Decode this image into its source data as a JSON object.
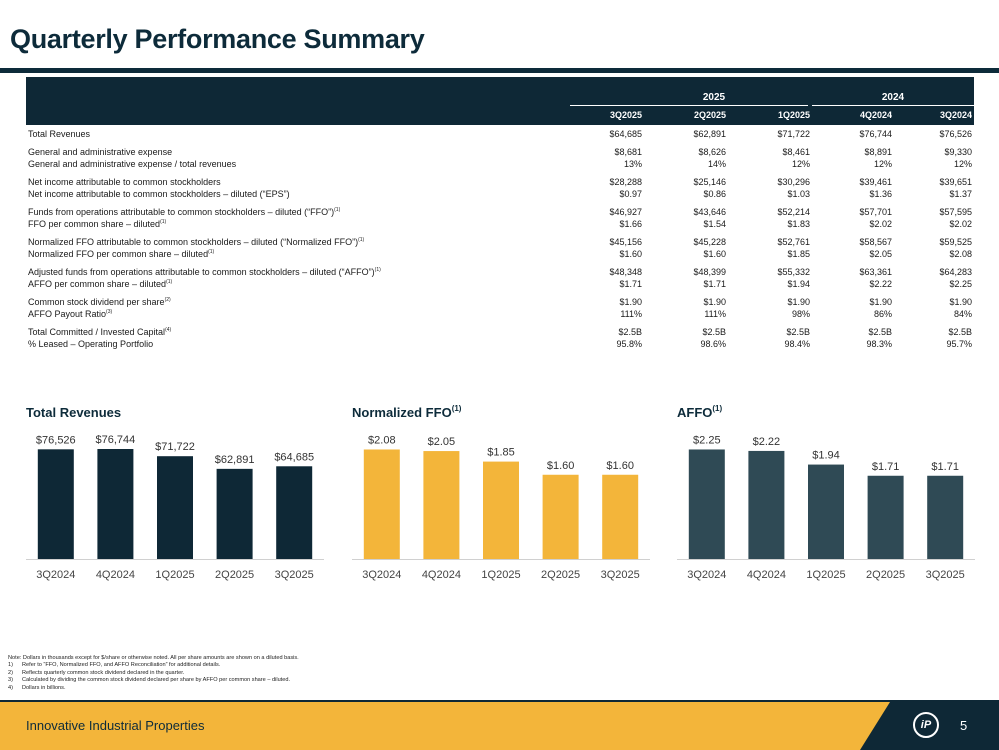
{
  "page": {
    "title": "Quarterly Performance Summary",
    "footer": "Innovative Industrial Properties",
    "page_number": "5",
    "logo_text": "iP"
  },
  "colors": {
    "navy": "#0e2836",
    "gold": "#f3b53a",
    "slate": "#2f4a55",
    "footer_gold": "#f3b53a",
    "footer_navy": "#0e2836"
  },
  "table": {
    "years": [
      "2025",
      "2024"
    ],
    "quarters": [
      "3Q2025",
      "2Q2025",
      "1Q2025",
      "4Q2024",
      "3Q2024"
    ],
    "groups": [
      [
        {
          "label": "Total Revenues",
          "sup": "",
          "values": [
            "$64,685",
            "$62,891",
            "$71,722",
            "$76,744",
            "$76,526"
          ]
        }
      ],
      [
        {
          "label": "General and administrative expense",
          "sup": "",
          "values": [
            "$8,681",
            "$8,626",
            "$8,461",
            "$8,891",
            "$9,330"
          ]
        },
        {
          "label": "General and administrative expense / total revenues",
          "sup": "",
          "values": [
            "13%",
            "14%",
            "12%",
            "12%",
            "12%"
          ]
        }
      ],
      [
        {
          "label": "Net income attributable to common stockholders",
          "sup": "",
          "values": [
            "$28,288",
            "$25,146",
            "$30,296",
            "$39,461",
            "$39,651"
          ]
        },
        {
          "label": "Net income attributable to common stockholders – diluted (“EPS”)",
          "sup": "",
          "values": [
            "$0.97",
            "$0.86",
            "$1.03",
            "$1.36",
            "$1.37"
          ]
        }
      ],
      [
        {
          "label": "Funds from operations attributable to common stockholders – diluted (“FFO”)",
          "sup": "(1)",
          "values": [
            "$46,927",
            "$43,646",
            "$52,214",
            "$57,701",
            "$57,595"
          ]
        },
        {
          "label": "FFO per common share – diluted",
          "sup": "(1)",
          "values": [
            "$1.66",
            "$1.54",
            "$1.83",
            "$2.02",
            "$2.02"
          ]
        }
      ],
      [
        {
          "label": "Normalized FFO attributable to common stockholders – diluted (“Normalized FFO”)",
          "sup": "(1)",
          "values": [
            "$45,156",
            "$45,228",
            "$52,761",
            "$58,567",
            "$59,525"
          ]
        },
        {
          "label": "Normalized FFO per common share – diluted",
          "sup": "(1)",
          "values": [
            "$1.60",
            "$1.60",
            "$1.85",
            "$2.05",
            "$2.08"
          ]
        }
      ],
      [
        {
          "label": "Adjusted funds from operations attributable to common stockholders – diluted (“AFFO”)",
          "sup": "(1)",
          "values": [
            "$48,348",
            "$48,399",
            "$55,332",
            "$63,361",
            "$64,283"
          ]
        },
        {
          "label": "AFFO per common share – diluted",
          "sup": "(1)",
          "values": [
            "$1.71",
            "$1.71",
            "$1.94",
            "$2.22",
            "$2.25"
          ]
        }
      ],
      [
        {
          "label": "Common stock dividend per share",
          "sup": "(2)",
          "values": [
            "$1.90",
            "$1.90",
            "$1.90",
            "$1.90",
            "$1.90"
          ]
        },
        {
          "label": "AFFO Payout Ratio",
          "sup": "(3)",
          "values": [
            "111%",
            "111%",
            "98%",
            "86%",
            "84%"
          ]
        }
      ],
      [
        {
          "label": "Total Committed / Invested Capital",
          "sup": "(4)",
          "values": [
            "$2.5B",
            "$2.5B",
            "$2.5B",
            "$2.5B",
            "$2.5B"
          ]
        },
        {
          "label": "% Leased – Operating Portfolio",
          "sup": "",
          "values": [
            "95.8%",
            "98.6%",
            "98.4%",
            "98.3%",
            "95.7%"
          ]
        }
      ]
    ]
  },
  "chart_data": [
    {
      "type": "bar",
      "title": "Total Revenues",
      "title_sup": "",
      "color": "#0e2836",
      "categories": [
        "3Q2024",
        "4Q2024",
        "1Q2025",
        "2Q2025",
        "3Q2025"
      ],
      "values": [
        76526,
        76744,
        71722,
        62891,
        64685
      ],
      "labels": [
        "$76,526",
        "$76,744",
        "$71,722",
        "$62,891",
        "$64,685"
      ],
      "ylim": [
        0,
        90000
      ]
    },
    {
      "type": "bar",
      "title": "Normalized FFO",
      "title_sup": "(1)",
      "color": "#f3b53a",
      "categories": [
        "3Q2024",
        "4Q2024",
        "1Q2025",
        "2Q2025",
        "3Q2025"
      ],
      "values": [
        2.08,
        2.05,
        1.85,
        1.6,
        1.6
      ],
      "labels": [
        "$2.08",
        "$2.05",
        "$1.85",
        "$1.60",
        "$1.60"
      ],
      "ylim": [
        0,
        2.45
      ]
    },
    {
      "type": "bar",
      "title": "AFFO",
      "title_sup": "(1)",
      "color": "#2f4a55",
      "categories": [
        "3Q2024",
        "4Q2024",
        "1Q2025",
        "2Q2025",
        "3Q2025"
      ],
      "values": [
        2.25,
        2.22,
        1.94,
        1.71,
        1.71
      ],
      "labels": [
        "$2.25",
        "$2.22",
        "$1.94",
        "$1.71",
        "$1.71"
      ],
      "ylim": [
        0,
        2.65
      ]
    }
  ],
  "notes": [
    {
      "key": "",
      "text": "Note: Dollars in thousands except for $/share or otherwise noted. All per share amounts are shown on a diluted basis."
    },
    {
      "key": "1)",
      "text": "Refer to “FFO, Normalized FFO, and AFFO Reconciliation” for additional details."
    },
    {
      "key": "2)",
      "text": "Reflects quarterly common stock dividend declared in the quarter."
    },
    {
      "key": "3)",
      "text": "Calculated by dividing the common stock dividend declared per share by AFFO per common share – diluted."
    },
    {
      "key": "4)",
      "text": "Dollars in billions."
    }
  ]
}
